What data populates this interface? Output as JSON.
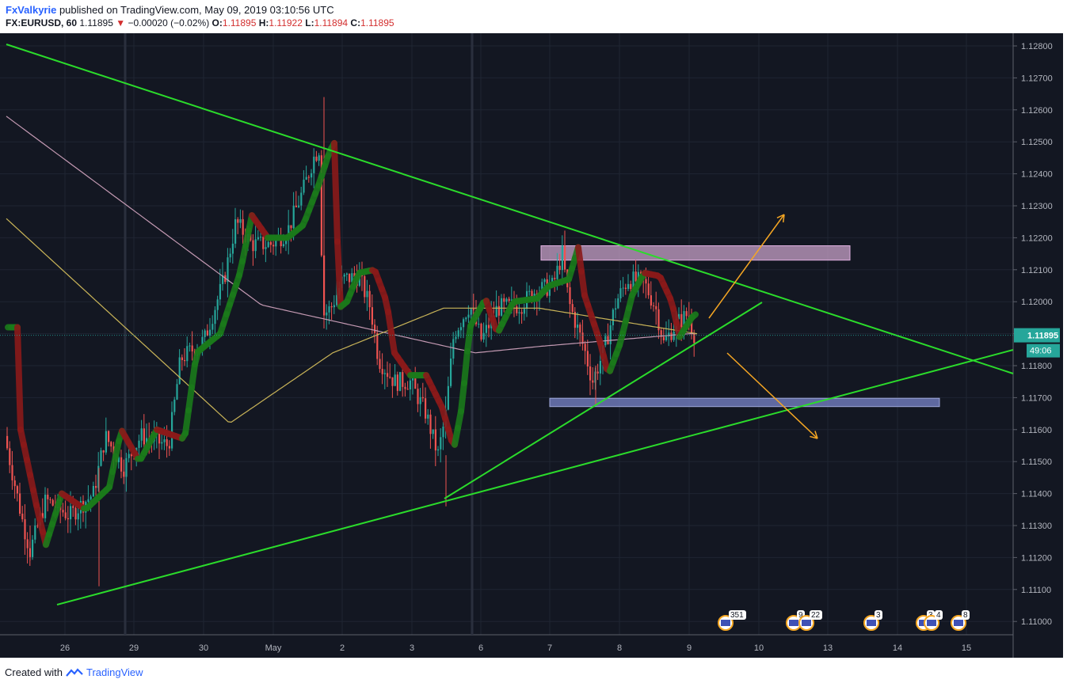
{
  "header": {
    "author": "FxValkyrie",
    "published": "published on TradingView.com, May 09, 2019 03:10:56 UTC",
    "symbol": "FX:EURUSD, 60",
    "price": "1.11895",
    "change": "−0.00020 (−0.02%)",
    "o_label": "O:",
    "o_value": "1.11895",
    "h_label": "H:",
    "h_value": "1.11922",
    "l_label": "L:",
    "l_value": "1.11894",
    "c_label": "C:",
    "c_value": "1.11895"
  },
  "footer": {
    "created_with": "Created with",
    "brand": "TradingView"
  },
  "chart_data": {
    "type": "candlestick",
    "symbol": "EURUSD",
    "interval": "60",
    "price_labels": [
      "1.12800",
      "1.12700",
      "1.12600",
      "1.12500",
      "1.12400",
      "1.12300",
      "1.12200",
      "1.12100",
      "1.12000",
      "1.11900",
      "1.11800",
      "1.11700",
      "1.11600",
      "1.11500",
      "1.11400",
      "1.11300",
      "1.11200",
      "1.11100",
      "1.11000"
    ],
    "ylim": [
      1.1098,
      1.1285
    ],
    "x_labels": [
      "26",
      "29",
      "30",
      "May",
      "2",
      "3",
      "6",
      "7",
      "8",
      "9",
      "10",
      "13",
      "14",
      "15"
    ],
    "last_price": "1.11895",
    "countdown": "49:06",
    "event_markers": [
      "351",
      "9",
      "22",
      "3",
      "3",
      "4",
      "8"
    ],
    "colors": {
      "up": "#26a69a",
      "down": "#ef5350",
      "trendline": "#2bdb2b",
      "arrow": "#f5a623",
      "resistance_zone": "#c8a2c8",
      "support_zone": "#7986cb",
      "ma_fast": "#c9b458",
      "ma_slow": "#c49ab3",
      "band_up": "#1b7a1b",
      "band_down": "#8b1a1a",
      "price_tag": "#26a69a"
    }
  }
}
